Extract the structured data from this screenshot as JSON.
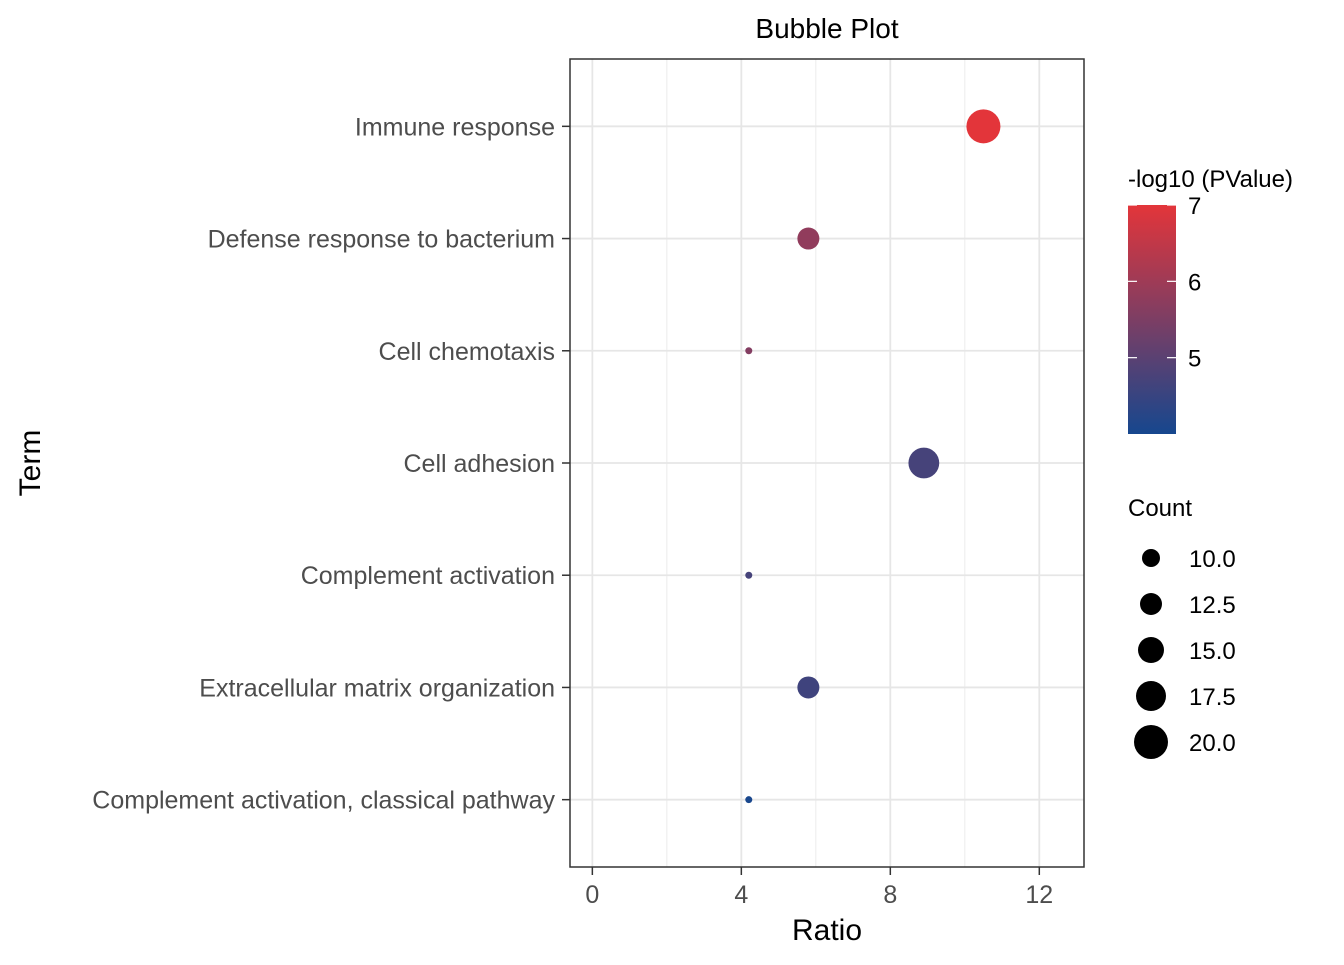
{
  "chart_data": {
    "type": "scatter",
    "title": "Bubble Plot",
    "xlabel": "Ratio",
    "ylabel": "Term",
    "xlim": [
      -0.6,
      13.2
    ],
    "x_ticks": [
      0,
      4,
      8,
      12
    ],
    "x_tick_labels": [
      "0",
      "4",
      "8",
      "12"
    ],
    "grid": true,
    "categories": [
      "Complement activation, classical pathway",
      "Extracellular matrix organization",
      "Complement activation",
      "Cell adhesion",
      "Cell chemotaxis",
      "Defense response to bacterium",
      "Immune response"
    ],
    "points": [
      {
        "term": "Immune response",
        "ratio": 10.5,
        "count": 20.0,
        "neg_log10_p": 7.0
      },
      {
        "term": "Defense response to bacterium",
        "ratio": 5.8,
        "count": 12.5,
        "neg_log10_p": 5.8
      },
      {
        "term": "Cell chemotaxis",
        "ratio": 4.2,
        "count": 9.0,
        "neg_log10_p": 5.6
      },
      {
        "term": "Cell adhesion",
        "ratio": 8.9,
        "count": 18.0,
        "neg_log10_p": 4.7
      },
      {
        "term": "Complement activation",
        "ratio": 4.2,
        "count": 9.0,
        "neg_log10_p": 4.7
      },
      {
        "term": "Extracellular matrix organization",
        "ratio": 5.8,
        "count": 12.5,
        "neg_log10_p": 4.6
      },
      {
        "term": "Complement activation, classical pathway",
        "ratio": 4.2,
        "count": 9.0,
        "neg_log10_p": 4.05
      }
    ],
    "color_legend": {
      "title": "-log10 (PValue)",
      "range": [
        4.0,
        7.0
      ],
      "ticks": [
        5,
        6,
        7
      ],
      "tick_labels": [
        "5",
        "6",
        "7"
      ],
      "low_color": "#16478e",
      "high_color": "#e3353a",
      "placement": "right"
    },
    "size_legend": {
      "title": "Count",
      "values": [
        10.0,
        12.5,
        15.0,
        17.5,
        20.0
      ],
      "labels": [
        "10.0",
        "12.5",
        "15.0",
        "17.5",
        "20.0"
      ],
      "placement": "right"
    }
  }
}
